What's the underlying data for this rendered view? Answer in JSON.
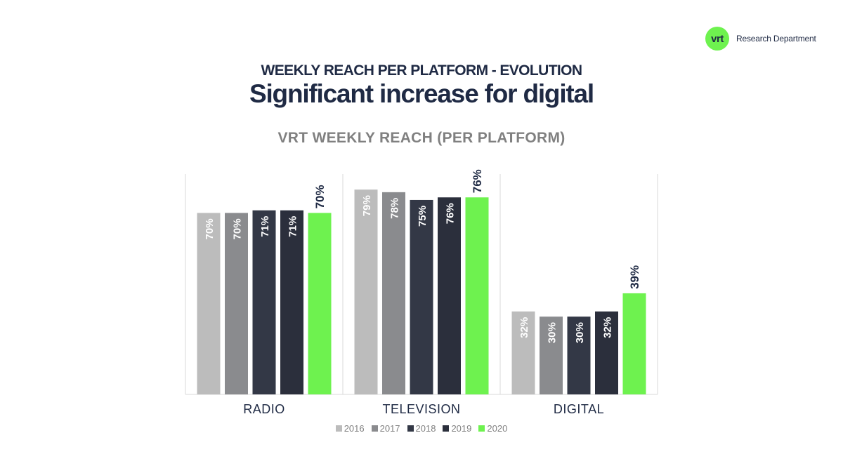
{
  "logo": {
    "badge_text": "vrt",
    "label": "Research Department"
  },
  "header": {
    "subtitle": "WEEKLY REACH PER PLATFORM - EVOLUTION",
    "title": "Significant increase for digital"
  },
  "colors": {
    "2016": "#bcbcbc",
    "2017": "#8a8b8e",
    "2018": "#333846",
    "2019": "#2b2f3c",
    "2020": "#6ef24f",
    "label_light": "#ffffff",
    "label_dark": "#1f2a44",
    "axis_text": "#1f2a44",
    "legend_text": "#808080",
    "divider": "#d9d9d9"
  },
  "chart_data": {
    "type": "bar",
    "title": "VRT WEEKLY REACH (PER PLATFORM)",
    "xlabel": "",
    "ylabel": "",
    "ylim": [
      0,
      85
    ],
    "grid": false,
    "legend_position": "bottom",
    "categories": [
      "RADIO",
      "TELEVISION",
      "DIGITAL"
    ],
    "series": [
      {
        "name": "2016",
        "values": [
          70,
          79,
          32
        ],
        "labels": [
          "70%",
          "79%",
          "32%"
        ]
      },
      {
        "name": "2017",
        "values": [
          70,
          78,
          30
        ],
        "labels": [
          "70%",
          "78%",
          "30%"
        ]
      },
      {
        "name": "2018",
        "values": [
          71,
          75,
          30
        ],
        "labels": [
          "71%",
          "75%",
          "30%"
        ]
      },
      {
        "name": "2019",
        "values": [
          71,
          76,
          32
        ],
        "labels": [
          "71%",
          "76%",
          "32%"
        ]
      },
      {
        "name": "2020",
        "values": [
          70,
          76,
          39
        ],
        "labels": [
          "70%",
          "76%",
          "39%"
        ]
      }
    ]
  }
}
